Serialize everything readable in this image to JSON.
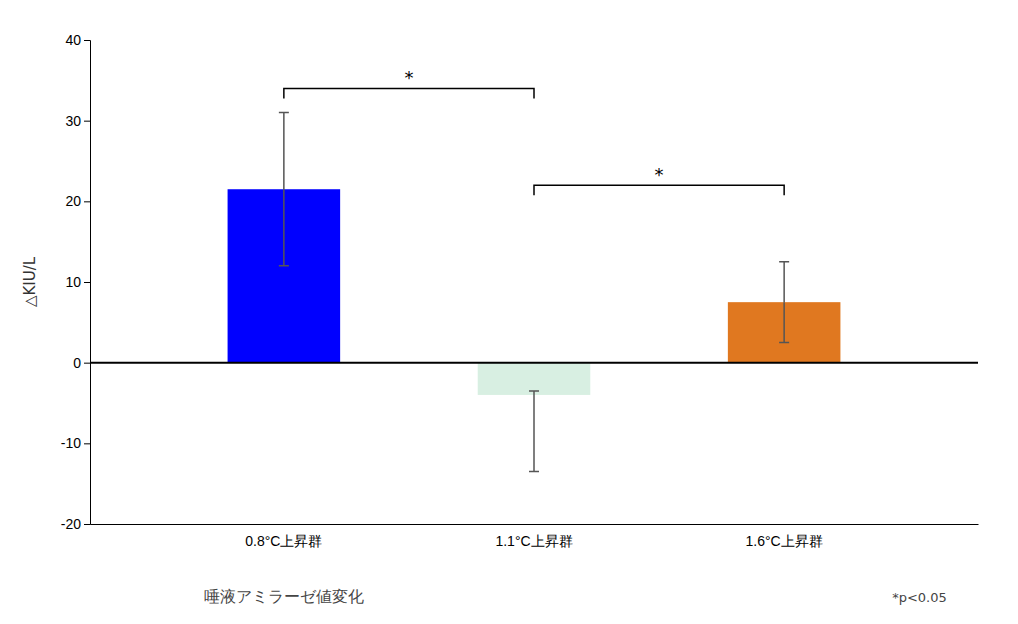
{
  "chart_data": {
    "type": "bar",
    "categories": [
      "0.8°C上昇群",
      "1.1°C上昇群",
      "1.6°C上昇群"
    ],
    "values": [
      21.5,
      -4.0,
      7.5
    ],
    "error_up": [
      9.5,
      0.5,
      5.0
    ],
    "error_down": [
      9.5,
      9.5,
      5.0
    ],
    "colors": [
      "#0000ff",
      "#d8efe2",
      "#e07820"
    ],
    "ylabel": "△KIU/L",
    "xlabel": "唾液アミラーゼ値変化",
    "note": "*p<0.05",
    "brackets": [
      {
        "x1": 0,
        "x2": 1,
        "y": 34,
        "label": "*"
      },
      {
        "x1": 1,
        "x2": 2,
        "y": 22,
        "label": "*"
      }
    ],
    "ylim": [
      -20,
      40
    ],
    "yticks": [
      -20,
      -10,
      0,
      10,
      20,
      30,
      40
    ],
    "grid": false
  }
}
